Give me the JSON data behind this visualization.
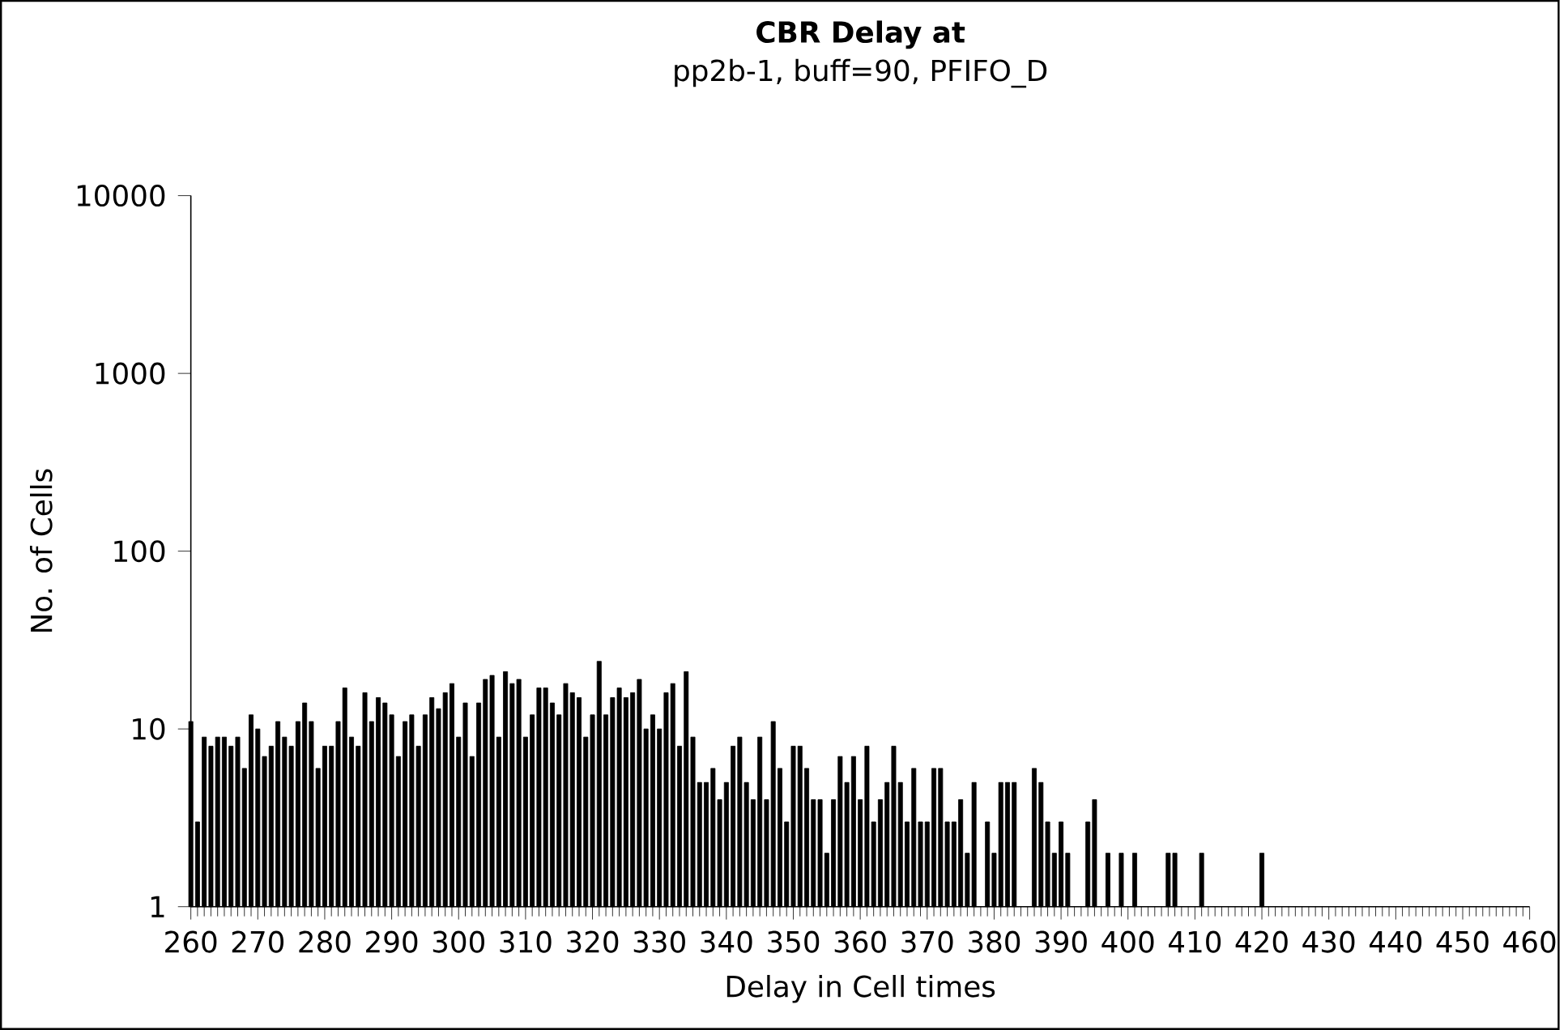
{
  "chart_data": {
    "type": "bar",
    "title": "CBR Delay at",
    "subtitle": "pp2b-1, buff=90, PFIFO_D",
    "xlabel": "Delay in Cell times",
    "ylabel": "No. of Cells",
    "color": "#000000",
    "log": "y",
    "x": [
      260,
      261,
      262,
      263,
      264,
      265,
      266,
      267,
      268,
      269,
      270,
      271,
      272,
      273,
      274,
      275,
      276,
      277,
      278,
      279,
      280,
      281,
      282,
      283,
      284,
      285,
      286,
      287,
      288,
      289,
      290,
      291,
      292,
      293,
      294,
      295,
      296,
      297,
      298,
      299,
      300,
      301,
      302,
      303,
      304,
      305,
      306,
      307,
      308,
      309,
      310,
      311,
      312,
      313,
      314,
      315,
      316,
      317,
      318,
      319,
      320,
      321,
      322,
      323,
      324,
      325,
      326,
      327,
      328,
      329,
      330,
      331,
      332,
      333,
      334,
      335,
      336,
      337,
      338,
      339,
      340,
      341,
      342,
      343,
      344,
      345,
      346,
      347,
      348,
      349,
      350,
      351,
      352,
      353,
      354,
      355,
      356,
      357,
      358,
      359,
      360,
      361,
      362,
      363,
      364,
      365,
      366,
      367,
      368,
      369,
      370,
      371,
      372,
      373,
      374,
      375,
      376,
      377,
      378,
      379,
      380,
      381,
      382,
      383,
      384,
      385,
      386,
      387,
      388,
      389,
      390,
      391,
      392,
      393,
      394,
      395,
      396,
      397,
      398,
      399,
      400,
      401,
      402,
      403,
      404,
      405,
      406,
      407,
      408,
      409,
      410,
      411,
      412,
      413,
      414,
      415,
      416,
      417,
      418,
      419,
      420
    ],
    "values": [
      11,
      3,
      9,
      8,
      9,
      9,
      8,
      9,
      6,
      12,
      10,
      7,
      8,
      11,
      9,
      8,
      11,
      14,
      11,
      6,
      8,
      8,
      11,
      17,
      9,
      8,
      16,
      11,
      15,
      14,
      12,
      7,
      11,
      12,
      8,
      12,
      15,
      13,
      16,
      18,
      9,
      14,
      7,
      14,
      19,
      20,
      9,
      21,
      18,
      19,
      9,
      12,
      17,
      17,
      14,
      12,
      18,
      16,
      15,
      9,
      12,
      24,
      12,
      15,
      17,
      15,
      16,
      19,
      10,
      12,
      10,
      16,
      18,
      8,
      21,
      9,
      5,
      5,
      6,
      4,
      5,
      8,
      9,
      5,
      4,
      9,
      4,
      11,
      6,
      3,
      8,
      8,
      6,
      4,
      4,
      2,
      4,
      7,
      5,
      7,
      4,
      8,
      3,
      4,
      5,
      8,
      5,
      3,
      6,
      3,
      3,
      6,
      6,
      3,
      3,
      4,
      2,
      5,
      null,
      3,
      2,
      5,
      5,
      5,
      null,
      null,
      6,
      5,
      3,
      2,
      3,
      2,
      null,
      null,
      3,
      4,
      null,
      2,
      null,
      2,
      null,
      2,
      null,
      null,
      null,
      null,
      2,
      2,
      null,
      null,
      null,
      2,
      null,
      null,
      null,
      null,
      null,
      null,
      null,
      null,
      2
    ],
    "xlim": [
      260,
      460
    ],
    "xticks": [
      260,
      270,
      280,
      290,
      300,
      310,
      320,
      330,
      340,
      350,
      360,
      370,
      380,
      390,
      400,
      410,
      420,
      430,
      440,
      450,
      460
    ],
    "ylim": [
      1,
      10000
    ],
    "yticks": [
      1,
      10,
      100,
      1000,
      10000
    ]
  }
}
